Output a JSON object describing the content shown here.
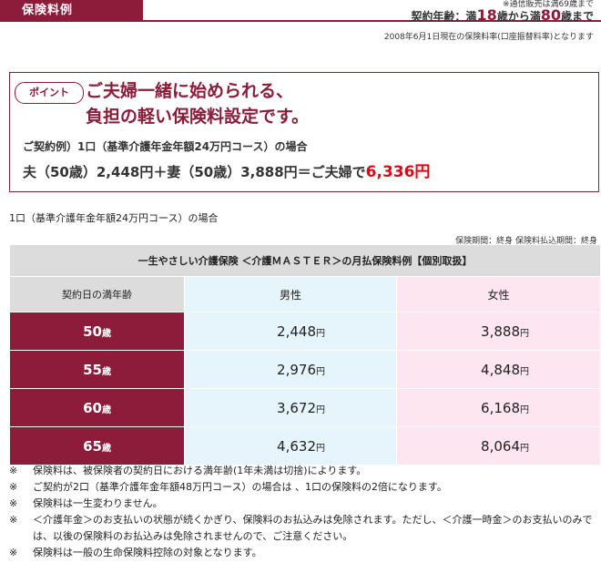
{
  "header": {
    "tab_label": "保険料例",
    "note": "※通信販売は満69歳まで",
    "age_prefix": "契約年齢：満",
    "age_min": "18",
    "age_mid": "歳から満",
    "age_max": "80",
    "age_suffix": "歳まで",
    "as_of": "2008年6月1日現在の保険料率(口座振替料率)となります"
  },
  "point": {
    "badge": "ポイント",
    "headline_1": "ご夫婦一緒に始められる、",
    "headline_2": "負担の軽い保険料設定です。",
    "example": "ご契約例）1口（基準介護年金年額24万円コース）の場合",
    "calc_prefix": "夫（50歳）2,448円＋妻（50歳）3,888円＝ご夫婦で",
    "calc_total": "6,336円"
  },
  "course_label": "1口（基準介護年金年額24万円コース）の場合",
  "period_note": "保険期間：終身 保険料払込期間：終身",
  "table": {
    "title": "一生やさしい介護保険 ＜介護ＭＡＳＴＥＲ＞の月払保険料例【個別取扱】",
    "col_age": "契約日の満年齢",
    "col_male": "男性",
    "col_female": "女性",
    "unit": "円",
    "rows": [
      {
        "age_num": "50",
        "age_unit": "歳",
        "male": "2,448",
        "female": "3,888"
      },
      {
        "age_num": "55",
        "age_unit": "歳",
        "male": "2,976",
        "female": "4,848"
      },
      {
        "age_num": "60",
        "age_unit": "歳",
        "male": "3,672",
        "female": "6,168"
      },
      {
        "age_num": "65",
        "age_unit": "歳",
        "male": "4,632",
        "female": "8,064"
      }
    ]
  },
  "notes": [
    {
      "mark": "※",
      "text": "保険料は、被保険者の契約日における満年齢(1年未満は切捨)によります。"
    },
    {
      "mark": "※",
      "text": "ご契約が2口（基準介護年金年額48万円コース）の場合は 、1口の保険料の2倍になります。"
    },
    {
      "mark": "※",
      "text": "保険料は一生変わりません。"
    },
    {
      "mark": "※",
      "text": "＜介護年金＞のお支払いの状態が続くかぎり、保険料のお払込みは免除されます。ただし、＜介護一時金＞のお支払いのみでは、以後の保険料のお払込みは免除されませんので、ご注意ください。"
    },
    {
      "mark": "※",
      "text": "保険料は一般の生命保険料控除の対象となります。"
    }
  ]
}
